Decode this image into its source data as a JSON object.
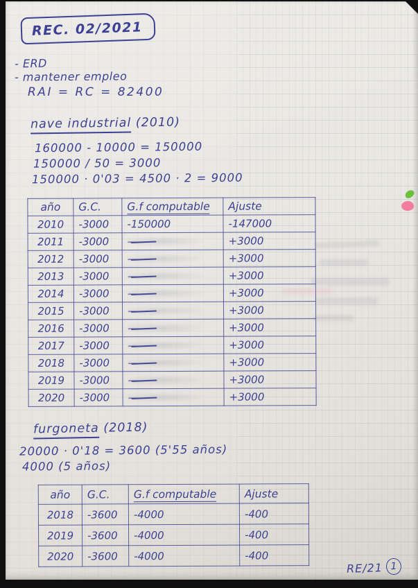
{
  "ink_color": "#3d4193",
  "header": {
    "title": "REC. 02/2021",
    "notes": [
      "- ERD",
      "- mantener empleo"
    ],
    "formula": "RAI = RC = 82400"
  },
  "section1": {
    "heading": "nave industrial",
    "heading_year": "(2010)",
    "calcs": [
      "160000 - 10000 = 150000",
      "150000 / 50 = 3000",
      "150000 · 0'03 = 4500 · 2 = 9000"
    ],
    "table": {
      "headers": [
        "año",
        "G.C.",
        "G.f computable",
        "Ajuste"
      ],
      "rows": [
        [
          "2010",
          "-3000",
          "-150000",
          "-147000"
        ],
        [
          "2011",
          "-3000",
          "—",
          "+3000"
        ],
        [
          "2012",
          "-3000",
          "—",
          "+3000"
        ],
        [
          "2013",
          "-3000",
          "—",
          "+3000"
        ],
        [
          "2014",
          "-3000",
          "—",
          "+3000"
        ],
        [
          "2015",
          "-3000",
          "—",
          "+3000"
        ],
        [
          "2016",
          "-3000",
          "—",
          "+3000"
        ],
        [
          "2017",
          "-3000",
          "—",
          "+3000"
        ],
        [
          "2018",
          "-3000",
          "—",
          "+3000"
        ],
        [
          "2019",
          "-3000",
          "—",
          "+3000"
        ],
        [
          "2020",
          "-3000",
          "—",
          "+3000"
        ]
      ]
    }
  },
  "section2": {
    "heading": "furgoneta",
    "heading_year": "(2018)",
    "calcs": [
      "20000 · 0'18 = 3600 (5'55 años)",
      "4000 (5 años)"
    ],
    "table": {
      "headers": [
        "año",
        "G.C.",
        "G.f computable",
        "Ajuste"
      ],
      "rows": [
        [
          "2018",
          "-3600",
          "-4000",
          "-400"
        ],
        [
          "2019",
          "-3600",
          "-4000",
          "-400"
        ],
        [
          "2020",
          "-3600",
          "-4000",
          "-400"
        ]
      ]
    }
  },
  "footer": {
    "code": "RE/21",
    "page_number": "1"
  },
  "stickers": {
    "green_dot_color": "#6cc13c",
    "pink_dot_color": "#f27e9b"
  }
}
